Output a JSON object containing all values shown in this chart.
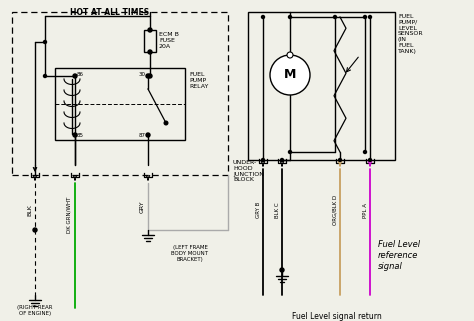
{
  "bg_color": "#f0f0e8",
  "wire_color_blk": "#000000",
  "wire_color_green": "#00aa00",
  "wire_color_gray": "#aaaaaa",
  "wire_color_ppl": "#cc00cc",
  "wire_color_org_blk": "#c8a060",
  "label_hot": "HOT AT ALL TIMES",
  "label_ecm": "ECM B\nFUSE\n20A",
  "label_relay": "FUEL\nPUMP\nRELAY",
  "label_junction": "UNDER-\nHOOD\nJUNCTION\nBLOCK",
  "label_blk": "BLK",
  "label_dkgrn": "DK GRN/WHT",
  "label_gry": "GRY",
  "label_right_rear": "(RIGHT REAR\nOF ENGINE)",
  "label_left_frame": "(LEFT FRAME\nBODY MOUNT\nBRACKET)",
  "label_fuel_pump_sensor": "FUEL\nPUMP/\nLEVEL\nSENSOR\n(IN\nFUEL\nTANK)",
  "label_gry_b": "GRY B",
  "label_blk_c": "BLK C",
  "label_org_blk_d": "ORG/BLK D",
  "label_ppl_a": "PPL A",
  "label_fuel_level_ref": "Fuel Level\nreference\nsignal",
  "label_fuel_level_ret": "Fuel Level signal return"
}
